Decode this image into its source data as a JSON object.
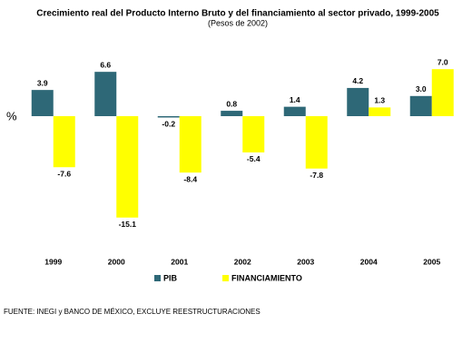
{
  "chart_data": {
    "type": "bar",
    "title": "Crecimiento real del Producto Interno Bruto y del financiamiento al sector privado, 1999-2005",
    "subtitle": "(Pesos de 2002)",
    "y_axis_label": "%",
    "categories": [
      "1999",
      "2000",
      "2001",
      "2002",
      "2003",
      "2004",
      "2005"
    ],
    "series": [
      {
        "name": "PIB",
        "color": "#2e6877",
        "values": [
          3.9,
          6.6,
          -0.2,
          0.8,
          1.4,
          4.2,
          3.0
        ],
        "value_labels": [
          "3.9",
          "6.6",
          "-0.2",
          "0.8",
          "1.4",
          "4.2",
          "3.0"
        ]
      },
      {
        "name": "FINANCIAMIENTO",
        "color": "#ffff00",
        "values": [
          -7.6,
          -15.1,
          -8.4,
          -5.4,
          -7.8,
          1.3,
          7.0
        ],
        "value_labels": [
          "-7.6",
          "-15.1",
          "-8.4",
          "-5.4",
          "-7.8",
          "1.3",
          "7.0"
        ]
      }
    ],
    "footnote": "FUENTE: INEGI y BANCO DE MÉXICO, EXCLUYE REESTRUCTURACIONES"
  }
}
